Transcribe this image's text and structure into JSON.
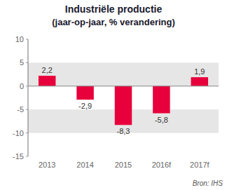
{
  "chart_data": {
    "type": "bar",
    "title": "Industriële productie",
    "subtitle": "(jaar-op-jaar, % verandering)",
    "categories": [
      "2013",
      "2014",
      "2015",
      "2016f",
      "2017f"
    ],
    "values": [
      2.2,
      -2.9,
      -8.3,
      -5.8,
      1.9
    ],
    "value_labels": [
      "2,2",
      "-2,9",
      "-8,3",
      "-5,8",
      "1,9"
    ],
    "data_labels": true,
    "color": "#e8003c",
    "ylim": [
      -15,
      10
    ],
    "yticks": [
      -15,
      -10,
      -5,
      0,
      5,
      10
    ],
    "grid": true,
    "annotations": [
      "Bron: IHS"
    ]
  }
}
